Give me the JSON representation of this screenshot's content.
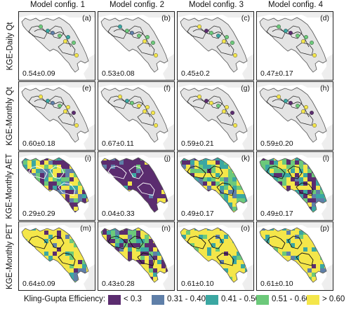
{
  "columns": [
    "Model config. 1",
    "Model config. 2",
    "Model config. 3",
    "Model config. 4"
  ],
  "rows": [
    "KGE-Daily Qt",
    "KGE-Monthly Qt",
    "KGE-Monthly AET",
    "KGE-Monthly PET"
  ],
  "panels": [
    [
      {
        "label": "(a)",
        "stat": "0.54±0.09"
      },
      {
        "label": "(b)",
        "stat": "0.53±0.08"
      },
      {
        "label": "(c)",
        "stat": "0.45±0.2"
      },
      {
        "label": "(d)",
        "stat": "0.47±0.17"
      }
    ],
    [
      {
        "label": "(e)",
        "stat": "0.60±0.18"
      },
      {
        "label": "(f)",
        "stat": "0.67±0.11"
      },
      {
        "label": "(g)",
        "stat": "0.59±0.21"
      },
      {
        "label": "(h)",
        "stat": "0.59±0.20"
      }
    ],
    [
      {
        "label": "(i)",
        "stat": "0.29±0.29"
      },
      {
        "label": "(j)",
        "stat": "0.04±0.33"
      },
      {
        "label": "(k)",
        "stat": "0.49±0.17"
      },
      {
        "label": "(l)",
        "stat": "0.49±0.17"
      }
    ],
    [
      {
        "label": "(m)",
        "stat": "0.64±0.09"
      },
      {
        "label": "(n)",
        "stat": "0.43±0.28"
      },
      {
        "label": "(o)",
        "stat": "0.61±0.10"
      },
      {
        "label": "(p)",
        "stat": "0.61±0.10"
      }
    ]
  ],
  "legend": {
    "title": "Kling-Gupta Efficiency:",
    "items": [
      {
        "label": "< 0.3",
        "color": "#5b2c6f"
      },
      {
        "label": "0.31 - 0.40",
        "color": "#5f7fa8"
      },
      {
        "label": "0.41 - 0.50",
        "color": "#3ba7a2"
      },
      {
        "label": "0.51 - 0.60",
        "color": "#6cc97a"
      },
      {
        "label": "> 0.60",
        "color": "#f4e64a"
      }
    ]
  },
  "colors": {
    "land": "#e4e4e4",
    "outline": "#555555",
    "neighbor": "#eeeeee",
    "dark_purple": "#4b1a5a",
    "yellow": "#f7e84e"
  }
}
